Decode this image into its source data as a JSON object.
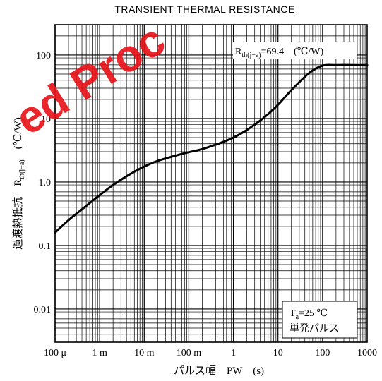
{
  "chart_data": {
    "type": "line",
    "title": "TRANSIENT THERMAL RESISTANCE",
    "xlabel": "パルス幅　PW　(s)",
    "ylabel": "過渡熱抵抗　Rth(j−a)　(℃/W)",
    "ylabel_main": "過渡熱抵抗",
    "ylabel_symbol": "R",
    "ylabel_subscript": "th(j−a)",
    "ylabel_unit": "(℃/W)",
    "x_scale": "log",
    "y_scale": "log",
    "xlim": [
      0.0001,
      1000
    ],
    "ylim": [
      0.003,
      300
    ],
    "grid": true,
    "x_ticks": [
      {
        "value": 0.0001,
        "label": "100 μ"
      },
      {
        "value": 0.001,
        "label": "1 m"
      },
      {
        "value": 0.01,
        "label": "10 m"
      },
      {
        "value": 0.1,
        "label": "100 m"
      },
      {
        "value": 1,
        "label": "1"
      },
      {
        "value": 10,
        "label": "10"
      },
      {
        "value": 100,
        "label": "100"
      },
      {
        "value": 1000,
        "label": "1000"
      }
    ],
    "y_ticks": [
      {
        "value": 0.01,
        "label": "0.01"
      },
      {
        "value": 0.1,
        "label": "0.1"
      },
      {
        "value": 1,
        "label": "1.0"
      },
      {
        "value": 10,
        "label": "10"
      },
      {
        "value": 100,
        "label": "100"
      }
    ],
    "series": [
      {
        "x": [
          0.0001,
          0.0002,
          0.0005,
          0.001,
          0.002,
          0.005,
          0.01,
          0.02,
          0.05,
          0.1,
          0.2,
          0.5,
          1,
          2,
          5,
          10,
          20,
          50,
          100,
          200,
          500,
          1000
        ],
        "y": [
          0.16,
          0.25,
          0.42,
          0.62,
          0.9,
          1.35,
          1.75,
          2.15,
          2.6,
          2.95,
          3.3,
          4.1,
          5.0,
          6.6,
          10.5,
          16.5,
          28,
          52,
          68,
          69.4,
          69.4,
          69.4
        ]
      }
    ],
    "annotations": {
      "rth_symbol": "R",
      "rth_subscript": "th(j−a)",
      "rth_value": "=69.4　(℃/W)",
      "condition_symbol": "T",
      "condition_subscript": "a",
      "condition_value": "=25 ℃",
      "condition_note": "単発パルス"
    }
  },
  "watermark": {
    "text": "ed Proc",
    "color": "#e8141b"
  }
}
